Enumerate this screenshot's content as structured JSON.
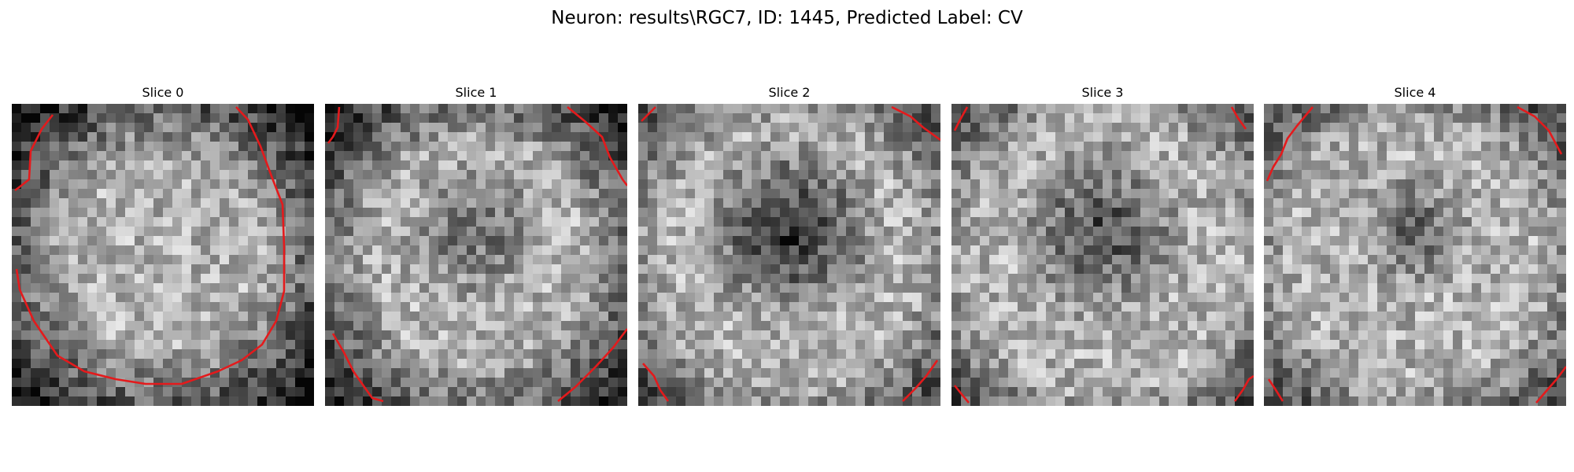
{
  "figure": {
    "title": "Neuron: results\\RGC7, ID: 1445, Predicted Label: CV"
  },
  "slices": [
    {
      "label": "Slice 0"
    },
    {
      "label": "Slice 1"
    },
    {
      "label": "Slice 2"
    },
    {
      "label": "Slice 3"
    },
    {
      "label": "Slice 4"
    }
  ],
  "colors": {
    "contour": "#e41a1c",
    "background": "#ffffff"
  }
}
